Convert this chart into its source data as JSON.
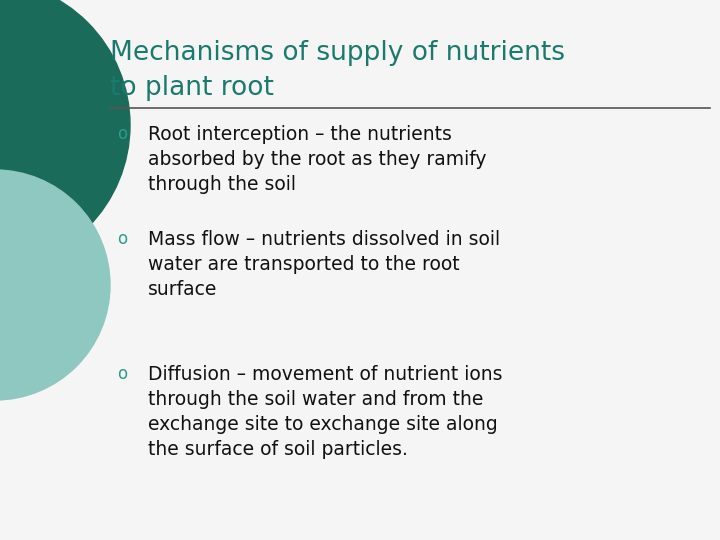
{
  "title_line1": "Mechanisms of supply of nutrients",
  "title_line2": "to plant root",
  "title_color": "#1a7a6e",
  "background_color": "#f5f5f5",
  "bullet_color": "#2a9d8f",
  "text_color": "#111111",
  "separator_color": "#555555",
  "circle_dark_color": "#1a6b5a",
  "circle_light_color": "#8ec8c0",
  "bullet_texts": [
    "Root interception – the nutrients\nabsorbed by the root as they ramify\nthrough the soil",
    "Mass flow – nutrients dissolved in soil\nwater are transported to the root\nsurface",
    "Diffusion – movement of nutrient ions\nthrough the soil water and from the\nexchange site to exchange site along\nthe surface of soil particles."
  ],
  "figsize": [
    7.2,
    5.4
  ],
  "dpi": 100
}
